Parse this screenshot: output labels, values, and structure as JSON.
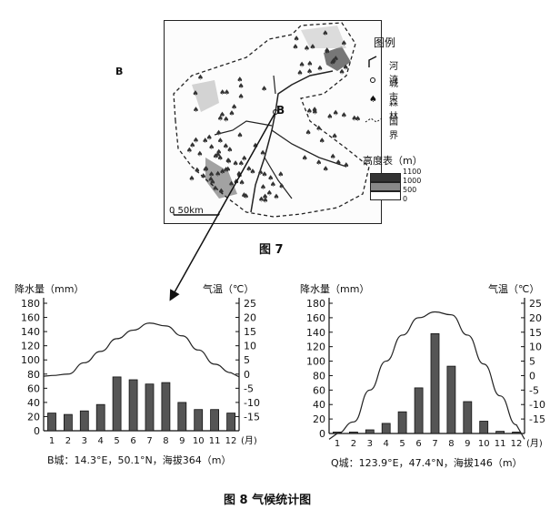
{
  "figure7": {
    "caption": "图 7",
    "city_label": "B",
    "scale_label": "0    50km",
    "legend": {
      "title": "图例",
      "items": [
        "河流",
        "城市",
        "森林",
        "国界"
      ],
      "elevation_title": "高度表（m）",
      "elevation_values": [
        "1100",
        "1000",
        "500",
        "0"
      ]
    }
  },
  "figure8": {
    "caption": "图 8   气候统计图"
  },
  "chart_data": [
    {
      "type": "bar",
      "categories": [
        "1",
        "2",
        "3",
        "4",
        "5",
        "6",
        "7",
        "8",
        "9",
        "10",
        "11",
        "12"
      ],
      "x_unit": "(月)",
      "series": [
        {
          "name": "降水量",
          "values": [
            25,
            23,
            28,
            37,
            76,
            72,
            66,
            68,
            40,
            30,
            30,
            25
          ]
        },
        {
          "name": "气温",
          "values": [
            -0.5,
            0,
            4,
            8,
            12.5,
            15.5,
            18,
            17,
            13.5,
            8.5,
            3.5,
            0.5
          ]
        }
      ],
      "ylabel_left": "降水量（mm）",
      "ylabel_right": "气温（℃）",
      "ylim_left": [
        0,
        180
      ],
      "ylim_right": [
        -20,
        25
      ],
      "yticks_left": [
        "0",
        "20",
        "40",
        "60",
        "80",
        "100",
        "120",
        "140",
        "160",
        "180"
      ],
      "yticks_right": [
        "-15",
        "-10",
        "-5",
        "0",
        "5",
        "10",
        "15",
        "20",
        "25"
      ],
      "footer": "B城：14.3°E，50.1°N，海拔364（m）"
    },
    {
      "type": "bar",
      "categories": [
        "1",
        "2",
        "3",
        "4",
        "5",
        "6",
        "7",
        "8",
        "9",
        "10",
        "11",
        "12"
      ],
      "x_unit": "(月)",
      "series": [
        {
          "name": "降水量",
          "values": [
            2,
            2,
            5,
            14,
            30,
            63,
            138,
            93,
            44,
            17,
            3,
            2
          ]
        },
        {
          "name": "气温",
          "values": [
            -20,
            -16,
            -5,
            5,
            14,
            20,
            22,
            21,
            14,
            4,
            -7,
            -17
          ]
        }
      ],
      "ylabel_left": "降水量（mm）",
      "ylabel_right": "气温（℃）",
      "ylim_left": [
        0,
        180
      ],
      "ylim_right": [
        -20,
        25
      ],
      "yticks_left": [
        "0",
        "20",
        "40",
        "60",
        "80",
        "100",
        "120",
        "140",
        "160",
        "180"
      ],
      "yticks_right": [
        "-15",
        "-10",
        "-5",
        "0",
        "5",
        "10",
        "15",
        "20",
        "25"
      ],
      "footer": "Q城：123.9°E，47.4°N，海拔146（m）"
    }
  ]
}
